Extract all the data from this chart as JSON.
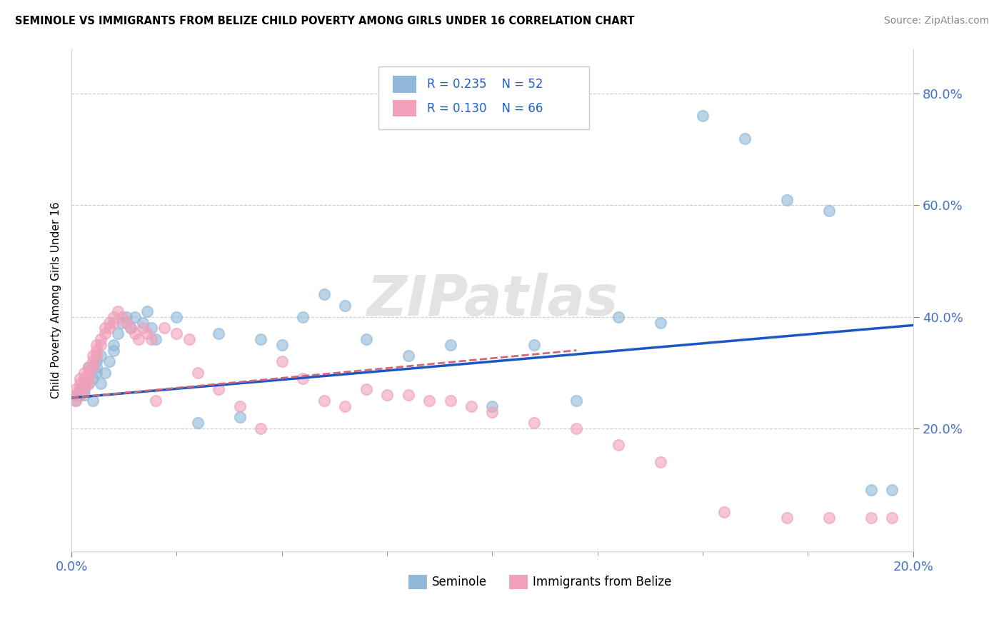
{
  "title": "SEMINOLE VS IMMIGRANTS FROM BELIZE CHILD POVERTY AMONG GIRLS UNDER 16 CORRELATION CHART",
  "source": "Source: ZipAtlas.com",
  "ylabel": "Child Poverty Among Girls Under 16",
  "xlim": [
    0.0,
    0.2
  ],
  "ylim": [
    -0.02,
    0.88
  ],
  "seminole_color": "#90b8d8",
  "belize_color": "#f0a0b8",
  "trend_seminole_color": "#1a56c4",
  "trend_belize_color": "#d06878",
  "watermark": "ZIPatlas",
  "seminole_x": [
    0.001,
    0.001,
    0.002,
    0.002,
    0.003,
    0.003,
    0.003,
    0.004,
    0.004,
    0.005,
    0.005,
    0.006,
    0.006,
    0.006,
    0.007,
    0.007,
    0.008,
    0.009,
    0.01,
    0.01,
    0.011,
    0.012,
    0.013,
    0.014,
    0.015,
    0.017,
    0.018,
    0.019,
    0.02,
    0.025,
    0.03,
    0.035,
    0.04,
    0.045,
    0.05,
    0.055,
    0.06,
    0.065,
    0.07,
    0.08,
    0.09,
    0.1,
    0.11,
    0.12,
    0.13,
    0.14,
    0.15,
    0.16,
    0.17,
    0.18,
    0.19,
    0.195
  ],
  "seminole_y": [
    0.26,
    0.25,
    0.27,
    0.26,
    0.28,
    0.26,
    0.27,
    0.31,
    0.28,
    0.29,
    0.25,
    0.32,
    0.31,
    0.3,
    0.33,
    0.28,
    0.3,
    0.32,
    0.34,
    0.35,
    0.37,
    0.39,
    0.4,
    0.38,
    0.4,
    0.39,
    0.41,
    0.38,
    0.36,
    0.4,
    0.21,
    0.37,
    0.22,
    0.36,
    0.35,
    0.4,
    0.44,
    0.42,
    0.36,
    0.33,
    0.35,
    0.24,
    0.35,
    0.25,
    0.4,
    0.39,
    0.76,
    0.72,
    0.61,
    0.59,
    0.09,
    0.09
  ],
  "belize_x": [
    0.001,
    0.001,
    0.001,
    0.002,
    0.002,
    0.002,
    0.002,
    0.003,
    0.003,
    0.003,
    0.003,
    0.004,
    0.004,
    0.004,
    0.004,
    0.005,
    0.005,
    0.005,
    0.006,
    0.006,
    0.006,
    0.007,
    0.007,
    0.008,
    0.008,
    0.009,
    0.009,
    0.01,
    0.01,
    0.011,
    0.012,
    0.013,
    0.014,
    0.015,
    0.016,
    0.017,
    0.018,
    0.019,
    0.02,
    0.022,
    0.025,
    0.028,
    0.03,
    0.035,
    0.04,
    0.045,
    0.05,
    0.055,
    0.06,
    0.065,
    0.07,
    0.075,
    0.08,
    0.085,
    0.09,
    0.095,
    0.1,
    0.11,
    0.12,
    0.13,
    0.14,
    0.155,
    0.17,
    0.18,
    0.19,
    0.195
  ],
  "belize_y": [
    0.27,
    0.26,
    0.25,
    0.29,
    0.28,
    0.27,
    0.26,
    0.3,
    0.29,
    0.28,
    0.27,
    0.31,
    0.3,
    0.29,
    0.28,
    0.33,
    0.32,
    0.31,
    0.35,
    0.34,
    0.33,
    0.36,
    0.35,
    0.38,
    0.37,
    0.39,
    0.38,
    0.4,
    0.39,
    0.41,
    0.4,
    0.39,
    0.38,
    0.37,
    0.36,
    0.38,
    0.37,
    0.36,
    0.25,
    0.38,
    0.37,
    0.36,
    0.3,
    0.27,
    0.24,
    0.2,
    0.32,
    0.29,
    0.25,
    0.24,
    0.27,
    0.26,
    0.26,
    0.25,
    0.25,
    0.24,
    0.23,
    0.21,
    0.2,
    0.17,
    0.14,
    0.05,
    0.04,
    0.04,
    0.04,
    0.04
  ],
  "trend_sem_x0": 0.0,
  "trend_sem_y0": 0.255,
  "trend_sem_x1": 0.2,
  "trend_sem_y1": 0.385,
  "trend_bel_x0": 0.0,
  "trend_bel_y0": 0.255,
  "trend_bel_x1": 0.12,
  "trend_bel_y1": 0.34
}
